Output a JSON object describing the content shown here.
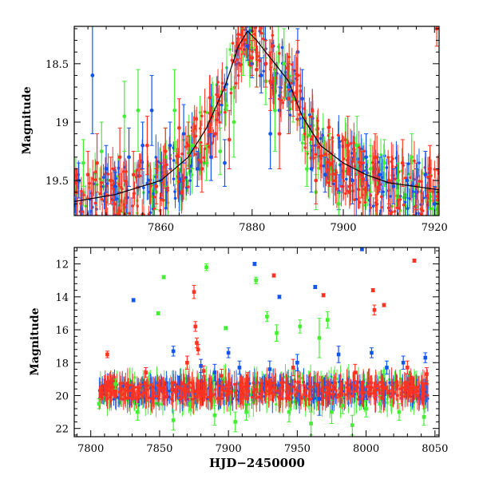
{
  "figure": {
    "colors": {
      "blue": "#1155ee",
      "green": "#44ee33",
      "red": "#ff3322",
      "axis": "#000000",
      "curve": "#000000"
    }
  },
  "chart_data": [
    {
      "type": "scatter",
      "title": "",
      "xlabel": "",
      "ylabel": "Magnitude",
      "xlim": [
        7841,
        7921
      ],
      "ylim": [
        19.8,
        18.18
      ],
      "y_inverted": true,
      "x_ticks": [
        7860,
        7880,
        7900,
        7920
      ],
      "x_tick_labels": [
        "7860",
        "7880",
        "7900",
        "7920"
      ],
      "y_ticks": [
        18.5,
        19,
        19.5
      ],
      "y_tick_labels": [
        "18.5",
        "19",
        "19.5"
      ],
      "grid": false,
      "legend": "none",
      "model_curve": {
        "x": [
          7841,
          7850,
          7860,
          7866,
          7870,
          7874,
          7877,
          7879,
          7881,
          7883,
          7885,
          7888,
          7891,
          7895,
          7900,
          7905,
          7910,
          7921
        ],
        "y": [
          19.68,
          19.62,
          19.5,
          19.3,
          19.05,
          18.7,
          18.35,
          18.22,
          18.3,
          18.4,
          18.5,
          18.65,
          18.95,
          19.2,
          19.35,
          19.45,
          19.52,
          19.58
        ]
      },
      "series": [
        {
          "color": "blue",
          "x": [
            7842,
            7845,
            7848,
            7850,
            7853,
            7856,
            7858,
            7860,
            7862,
            7865,
            7868,
            7871,
            7874,
            7879,
            7880,
            7882,
            7884,
            7886,
            7888,
            7890,
            7891,
            7893,
            7896,
            7899,
            7902,
            7905,
            7908,
            7911,
            7914,
            7916,
            7918,
            7920
          ],
          "y": [
            19.5,
            18.6,
            19.4,
            19.55,
            19.3,
            19.2,
            18.9,
            19.5,
            19.2,
            19.1,
            19.4,
            19.3,
            19.35,
            18.35,
            18.5,
            18.6,
            19.1,
            18.9,
            18.7,
            18.4,
            18.8,
            19.4,
            19.45,
            19.6,
            19.5,
            19.3,
            19.45,
            19.55,
            19.5,
            19.6,
            19.45,
            19.7
          ],
          "err": [
            0.15,
            0.5,
            0.2,
            0.12,
            0.25,
            0.2,
            0.3,
            0.15,
            0.2,
            0.25,
            0.15,
            0.2,
            0.2,
            0.12,
            0.12,
            0.15,
            0.3,
            0.2,
            0.2,
            0.2,
            0.25,
            0.2,
            0.15,
            0.15,
            0.2,
            0.2,
            0.15,
            0.15,
            0.15,
            0.2,
            0.2,
            0.15
          ]
        },
        {
          "color": "green",
          "x": [
            7843,
            7847,
            7852,
            7855,
            7859,
            7861,
            7863,
            7867,
            7870,
            7873,
            7876,
            7878,
            7881,
            7883,
            7885,
            7887,
            7889,
            7892,
            7894,
            7897,
            7899,
            7903,
            7906,
            7909,
            7912,
            7915,
            7919
          ],
          "y": [
            19.35,
            19.25,
            18.95,
            18.9,
            19.6,
            19.3,
            18.9,
            19.2,
            19.35,
            19.25,
            19.0,
            18.4,
            18.55,
            18.65,
            18.9,
            18.5,
            18.8,
            19.4,
            19.6,
            19.3,
            19.7,
            19.2,
            19.4,
            19.35,
            19.5,
            19.3,
            19.6
          ],
          "err": [
            0.2,
            0.25,
            0.3,
            0.35,
            0.15,
            0.25,
            0.35,
            0.2,
            0.15,
            0.2,
            0.3,
            0.2,
            0.15,
            0.2,
            0.35,
            0.3,
            0.2,
            0.15,
            0.15,
            0.2,
            0.1,
            0.25,
            0.2,
            0.2,
            0.15,
            0.2,
            0.15
          ]
        },
        {
          "color": "red",
          "x": [
            7841.5,
            7844,
            7846,
            7849,
            7851,
            7854,
            7857,
            7859,
            7861,
            7864,
            7866,
            7869,
            7872,
            7875,
            7877,
            7878,
            7880,
            7881,
            7883,
            7884,
            7886,
            7888,
            7889,
            7890,
            7894,
            7897,
            7901,
            7904,
            7907,
            7910,
            7913,
            7916,
            7919,
            7920.5
          ],
          "y": [
            19.6,
            19.45,
            19.35,
            19.5,
            19.3,
            19.45,
            19.2,
            19.55,
            19.25,
            19.05,
            19.2,
            19.4,
            19.1,
            19.15,
            18.25,
            18.3,
            18.45,
            18.55,
            18.5,
            18.65,
            19.1,
            18.8,
            18.75,
            18.6,
            19.5,
            19.35,
            19.2,
            19.45,
            19.3,
            19.5,
            19.35,
            19.55,
            19.4,
            18.2
          ],
          "err": [
            0.2,
            0.2,
            0.25,
            0.2,
            0.25,
            0.2,
            0.25,
            0.15,
            0.2,
            0.25,
            0.2,
            0.2,
            0.2,
            0.25,
            0.1,
            0.12,
            0.15,
            0.15,
            0.2,
            0.25,
            0.3,
            0.3,
            0.2,
            0.3,
            0.2,
            0.2,
            0.25,
            0.2,
            0.2,
            0.2,
            0.2,
            0.2,
            0.2,
            0.15
          ]
        }
      ]
    },
    {
      "type": "scatter",
      "title": "",
      "xlabel": "HJD−2450000",
      "ylabel": "Magnitude",
      "xlim": [
        7788,
        8053
      ],
      "ylim": [
        22.5,
        11.0
      ],
      "y_inverted": true,
      "x_ticks": [
        7800,
        7850,
        7900,
        7950,
        8000,
        8050
      ],
      "x_tick_labels": [
        "7800",
        "7850",
        "7900",
        "7950",
        "8000",
        "8050"
      ],
      "y_ticks": [
        12,
        14,
        16,
        18,
        20,
        22
      ],
      "y_tick_labels": [
        "12",
        "14",
        "16",
        "18",
        "20",
        "22"
      ],
      "grid": false,
      "legend": "none",
      "band": {
        "x_start": 7806,
        "x_end": 8045,
        "y_center": 19.7,
        "y_halfwidth": 0.55
      },
      "series": [
        {
          "color": "blue",
          "x": [
            7831,
            7860,
            7880,
            7890,
            7900,
            7908,
            7919,
            7930,
            7937,
            7950,
            7963,
            7966,
            7980,
            7997,
            8004,
            8015,
            8027,
            8043
          ],
          "y": [
            14.2,
            17.3,
            18.2,
            18.6,
            17.4,
            18.3,
            12.0,
            18.4,
            14.0,
            18.0,
            13.4,
            20.2,
            17.5,
            11.1,
            17.4,
            18.3,
            18.0,
            17.7
          ],
          "err": [
            0.1,
            0.3,
            0.4,
            0.5,
            0.3,
            0.4,
            0.1,
            0.5,
            0.1,
            0.5,
            0.1,
            1.0,
            0.5,
            0.1,
            0.3,
            0.4,
            0.4,
            0.3
          ]
        },
        {
          "color": "green",
          "x": [
            7806,
            7818,
            7834,
            7849,
            7853,
            7860,
            7872,
            7884,
            7890,
            7898,
            7905,
            7913,
            7920,
            7928,
            7935,
            7944,
            7952,
            7960,
            7966,
            7972,
            7975,
            7983,
            7990,
            8000,
            8010,
            8024,
            8042
          ],
          "y": [
            20.5,
            19.3,
            21.0,
            15.0,
            12.8,
            21.5,
            20.5,
            12.2,
            21.2,
            15.9,
            21.6,
            21.0,
            13.0,
            15.2,
            16.2,
            21.0,
            15.8,
            21.7,
            16.5,
            15.4,
            21.0,
            20.6,
            21.8,
            20.8,
            20.5,
            21.0,
            21.3
          ],
          "err": [
            0.3,
            0.3,
            0.5,
            0.1,
            0.1,
            0.6,
            0.4,
            0.2,
            0.6,
            0.1,
            0.6,
            0.5,
            0.2,
            0.3,
            0.5,
            0.6,
            0.4,
            0.7,
            1.2,
            0.5,
            0.7,
            0.5,
            0.6,
            0.5,
            0.5,
            0.5,
            0.5
          ]
        },
        {
          "color": "red",
          "x": [
            7812,
            7840,
            7870,
            7875,
            7876,
            7877,
            7878,
            7882,
            7895,
            7914,
            7933,
            7947,
            7969,
            7992,
            8005,
            8006,
            8013,
            8030,
            8035,
            8044
          ],
          "y": [
            17.5,
            18.6,
            18.0,
            13.7,
            15.8,
            16.8,
            17.2,
            18.5,
            18.8,
            19.0,
            12.7,
            18.3,
            13.9,
            18.6,
            13.6,
            14.8,
            14.5,
            18.3,
            11.8,
            18.7
          ],
          "err": [
            0.2,
            0.3,
            0.4,
            0.4,
            0.3,
            0.3,
            0.3,
            0.3,
            0.4,
            0.4,
            0.1,
            0.5,
            0.1,
            0.5,
            0.1,
            0.3,
            0.1,
            0.4,
            0.1,
            0.4
          ]
        }
      ]
    }
  ]
}
